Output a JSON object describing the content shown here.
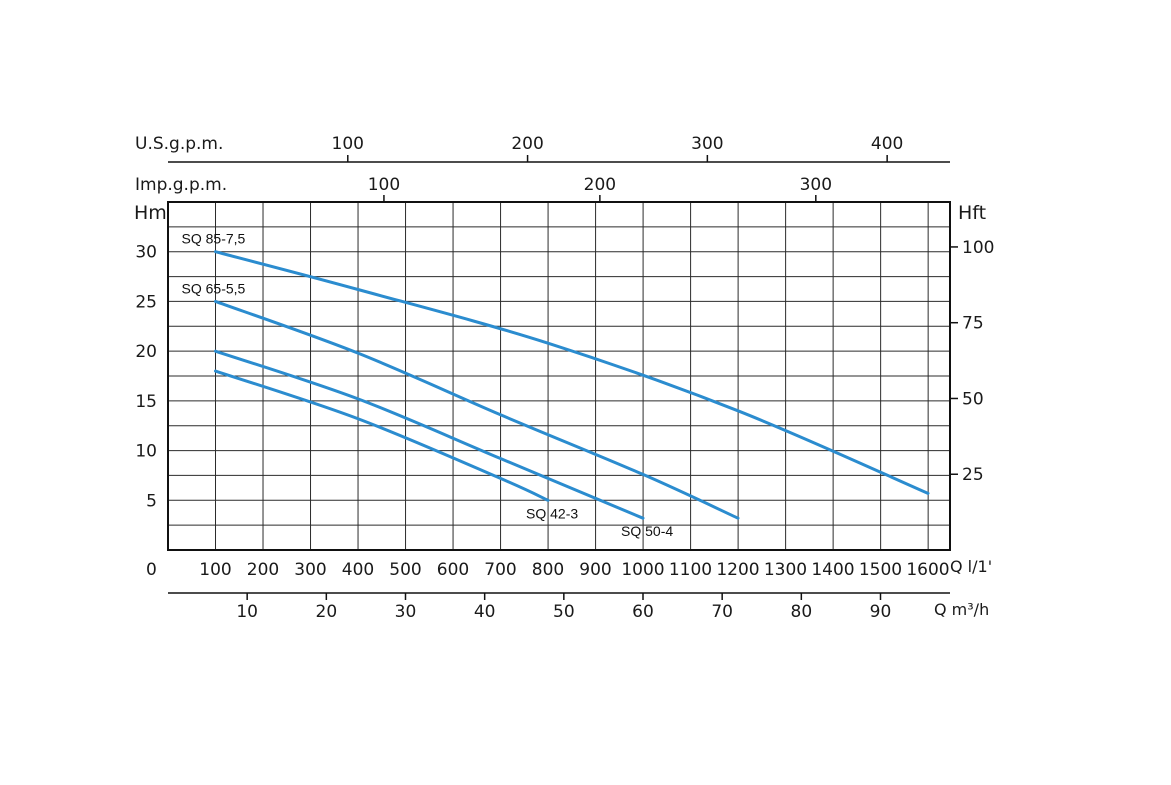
{
  "chart_data": {
    "type": "line",
    "y_axis_left": {
      "unit": "Hm",
      "ticks": [
        "5",
        "10",
        "15",
        "20",
        "25",
        "30"
      ],
      "range": [
        0,
        35
      ]
    },
    "y_axis_right": {
      "unit": "Hft",
      "ticks": [
        "25",
        "50",
        "75",
        "100"
      ]
    },
    "x_axis_main": {
      "unit": "Q l/1'",
      "origin": "0",
      "ticks": [
        "100",
        "200",
        "300",
        "400",
        "500",
        "600",
        "700",
        "800",
        "900",
        "1000",
        "1100",
        "1200",
        "1300",
        "1400",
        "1500",
        "1600"
      ],
      "range": [
        0,
        1650
      ]
    },
    "x_axis_m3h": {
      "unit": "Q m³/h",
      "ticks": [
        "10",
        "20",
        "30",
        "40",
        "50",
        "60",
        "70",
        "80",
        "90"
      ]
    },
    "x_axis_usgpm": {
      "unit": "U.S.g.p.m.",
      "ticks": [
        "100",
        "200",
        "300",
        "400"
      ]
    },
    "x_axis_impgpm": {
      "unit": "Imp.g.p.m.",
      "ticks": [
        "100",
        "200",
        "300"
      ]
    },
    "grid": true,
    "series": [
      {
        "name": "SQ 85-7,5",
        "x": [
          100,
          400,
          800,
          1200,
          1600
        ],
        "y": [
          30,
          26.2,
          20.8,
          14,
          5.7
        ]
      },
      {
        "name": "SQ 65-5,5",
        "x": [
          100,
          400,
          700,
          1000,
          1200
        ],
        "y": [
          25,
          19.8,
          13.6,
          7.6,
          3.2
        ]
      },
      {
        "name": "SQ 50-4",
        "x": [
          100,
          400,
          700,
          1000
        ],
        "y": [
          20,
          15.2,
          9.2,
          3.2
        ]
      },
      {
        "name": "SQ 42-3",
        "x": [
          100,
          400,
          700,
          800
        ],
        "y": [
          18,
          13.2,
          7.2,
          5
        ]
      }
    ],
    "colors": {
      "curve": "#2b8ccf",
      "grid": "#2b2b2b"
    }
  }
}
